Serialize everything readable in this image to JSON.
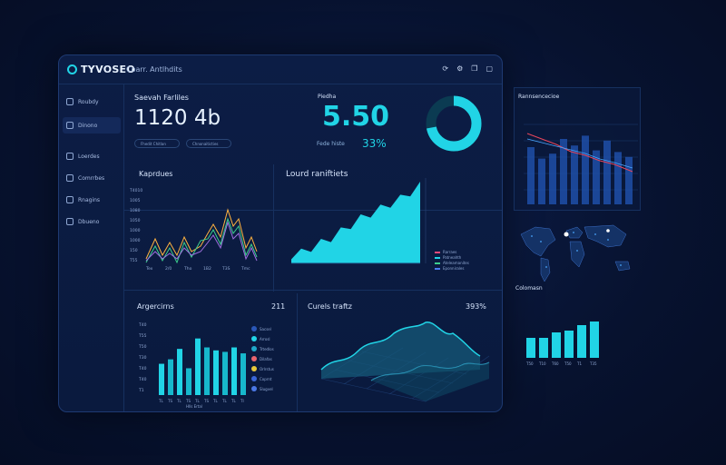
{
  "app": {
    "logo_text": "TYVOSEO",
    "subtitle": "Coarr. Antlhdits"
  },
  "titlebar_icons": [
    "refresh-icon",
    "settings-icon",
    "copy-icon",
    "window-icon"
  ],
  "sidebar": {
    "items": [
      {
        "label": "Roubdy",
        "icon": "home-icon"
      },
      {
        "label": "Dinono",
        "icon": "folder-icon",
        "active": true
      },
      {
        "label": "Loerdes",
        "icon": "list-icon"
      },
      {
        "label": "Comrrbes",
        "icon": "grid-icon"
      },
      {
        "label": "Rnagins",
        "icon": "image-icon"
      },
      {
        "label": "Dbueno",
        "icon": "user-icon"
      }
    ]
  },
  "kpi_left": {
    "label": "Saevah Farliles",
    "value": "1120 4b",
    "pill1": "Fhedit Chitlan",
    "pill2": "Chnonaiticties"
  },
  "kpi_mid": {
    "label": "Piedha",
    "value": "5.50",
    "sub_label": "Fede histe",
    "sub_pct": "33%"
  },
  "ring": {
    "fraction": 0.72,
    "color": "#21d4e6"
  },
  "line_panel": {
    "title": "Kaprdues",
    "y_ticks": [
      "T4010",
      "1005",
      "1080",
      "1050",
      "1000",
      "1000",
      "150",
      "T55"
    ],
    "x_ticks": [
      "Tex",
      "2/0",
      "Tho",
      "1B2",
      "T3S",
      "Tmc"
    ]
  },
  "area_panel": {
    "title": "Lourd raniftiets",
    "values": [
      5,
      18,
      14,
      30,
      26,
      44,
      42,
      60,
      56,
      72,
      68,
      84,
      82,
      100
    ],
    "legend": [
      "Rarraes",
      "Patneahth",
      "Ateleamanites",
      "Eponnirales"
    ],
    "legend_colors": [
      "#e84a7a",
      "#21d4e6",
      "#3ccf8e",
      "#4a7cf0"
    ]
  },
  "bar_panel": {
    "title": "Argercirns",
    "count": "211",
    "values": [
      42,
      48,
      62,
      36,
      76,
      64,
      60,
      58,
      64,
      56
    ],
    "y_ticks": [
      "T40",
      "T55",
      "T50",
      "T30",
      "T40",
      "T40",
      "T1"
    ],
    "x_ticks": [
      "TL",
      "TS",
      "TL",
      "TS",
      "TL",
      "TS",
      "TL",
      "TL",
      "TL",
      "TI"
    ],
    "x_caption": "Hlls Ertal",
    "legend": [
      "Sacsel",
      "Arrosl",
      "Trtedlos",
      "Dilafas",
      "Orlrstus",
      "Coprnt",
      "Slugvel"
    ],
    "legend_colors": [
      "#2a57b8",
      "#21d4e6",
      "#1fa8c8",
      "#e8646e",
      "#e8c83a",
      "#3a66d8",
      "#4b78e6"
    ]
  },
  "surface_panel": {
    "title": "Curels traftz",
    "pct": "393%"
  },
  "right_bar_top": {
    "title": "Rannsencecioe",
    "values": [
      70,
      56,
      62,
      80,
      72,
      84,
      66,
      78,
      64,
      58
    ]
  },
  "right_map": {
    "caption": "Colomasn"
  },
  "right_bar_bottom": {
    "values": [
      22,
      22,
      28,
      30,
      36,
      40
    ],
    "x_ticks": [
      "T50",
      "T10",
      "T60",
      "T50",
      "T1",
      "T35"
    ]
  }
}
